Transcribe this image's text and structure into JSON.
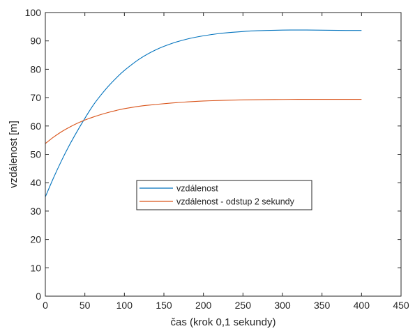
{
  "chart_data": {
    "type": "line",
    "xlabel": "čas (krok 0,1 sekundy)",
    "ylabel": "vzdálenost [m]",
    "xlim": [
      0,
      450
    ],
    "ylim": [
      0,
      100
    ],
    "xticks": [
      0,
      50,
      100,
      150,
      200,
      250,
      300,
      350,
      400,
      450
    ],
    "yticks": [
      0,
      10,
      20,
      30,
      40,
      50,
      60,
      70,
      80,
      90,
      100
    ],
    "grid": false,
    "legend_position": "center",
    "series": [
      {
        "name": "vzdálenost",
        "color": "#0072BD",
        "x": [
          0,
          10,
          20,
          30,
          40,
          50,
          60,
          70,
          80,
          90,
          100,
          120,
          140,
          160,
          180,
          200,
          220,
          240,
          260,
          280,
          300,
          320,
          340,
          360,
          380,
          400
        ],
        "y": [
          35,
          41.5,
          47.5,
          53,
          58,
          62.7,
          67.1,
          70.8,
          74.1,
          77.0,
          79.6,
          83.8,
          86.9,
          89.1,
          90.7,
          91.8,
          92.6,
          93.1,
          93.5,
          93.7,
          93.8,
          93.85,
          93.8,
          93.75,
          93.7,
          93.7
        ]
      },
      {
        "name": "vzdálenost - odstup 2 sekundy",
        "color": "#D95319",
        "x": [
          0,
          10,
          20,
          30,
          40,
          50,
          60,
          70,
          80,
          90,
          100,
          120,
          140,
          160,
          180,
          200,
          220,
          240,
          260,
          280,
          300,
          320,
          340,
          360,
          380,
          400
        ],
        "y": [
          53.8,
          56.0,
          57.9,
          59.5,
          60.9,
          62.1,
          63.1,
          64.0,
          64.8,
          65.5,
          66.1,
          67.0,
          67.6,
          68.1,
          68.5,
          68.8,
          69.0,
          69.15,
          69.25,
          69.3,
          69.35,
          69.4,
          69.4,
          69.4,
          69.4,
          69.4
        ]
      }
    ]
  }
}
